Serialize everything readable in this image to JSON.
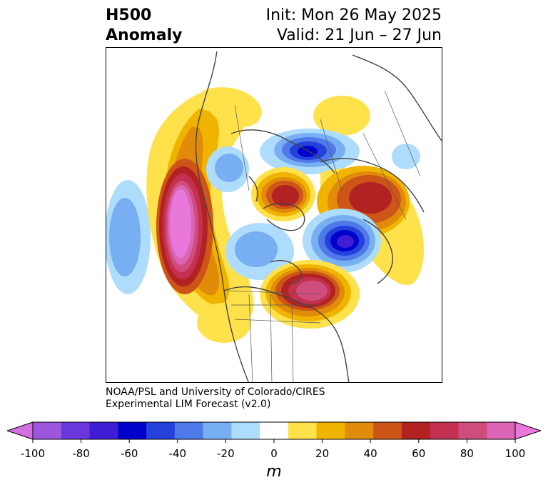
{
  "title": {
    "left_line1": "H500",
    "left_line2": "Anomaly",
    "right_line1": "Init: Mon 26 May 2025",
    "right_line2": "Valid: 21 Jun – 27 Jun"
  },
  "credit": {
    "line1": "NOAA/PSL and University of Colorado/CIRES",
    "line2": "Experimental LIM Forecast (v2.0)"
  },
  "colorbar": {
    "unit": "m",
    "ticks": [
      "-100",
      "-80",
      "-60",
      "-40",
      "-20",
      "0",
      "20",
      "40",
      "60",
      "80",
      "100"
    ],
    "colors": [
      "#d66ee3",
      "#9c56de",
      "#6a37dc",
      "#3e1dd4",
      "#0000cd",
      "#2441dc",
      "#4f78e8",
      "#78aff2",
      "#aedcfc",
      "#ffffff",
      "#ffe14c",
      "#f0b400",
      "#e08c0a",
      "#cc5517",
      "#b22222",
      "#c43050",
      "#cf4d7c",
      "#dc64b4",
      "#e878da"
    ]
  },
  "map": {
    "projection": "north-polar-stereographic",
    "features": [
      "coastlines",
      "country-borders",
      "state-borders"
    ]
  }
}
